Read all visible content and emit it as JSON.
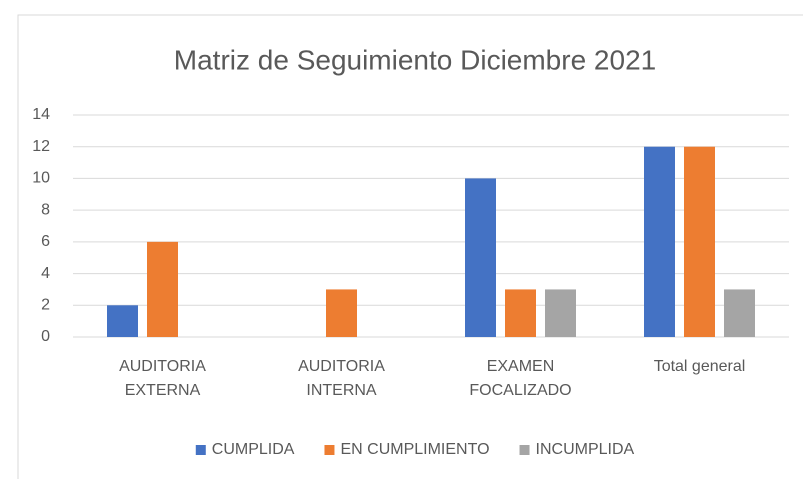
{
  "chart_data": {
    "type": "bar",
    "title": "Matriz de Seguimiento Diciembre 2021",
    "categories": [
      "AUDITORIA EXTERNA",
      "AUDITORIA INTERNA",
      "EXAMEN FOCALIZADO",
      "Total general"
    ],
    "series": [
      {
        "name": "CUMPLIDA",
        "color": "#4472c4",
        "values": [
          2,
          null,
          10,
          12
        ]
      },
      {
        "name": "EN CUMPLIMIENTO",
        "color": "#ed7d31",
        "values": [
          6,
          3,
          3,
          12
        ]
      },
      {
        "name": "INCUMPLIDA",
        "color": "#a5a5a5",
        "values": [
          null,
          null,
          3,
          3
        ]
      }
    ],
    "ylim": [
      0,
      14
    ],
    "yticks": [
      0,
      2,
      4,
      6,
      8,
      10,
      12,
      14
    ],
    "grid": true,
    "legend": "bottom"
  }
}
